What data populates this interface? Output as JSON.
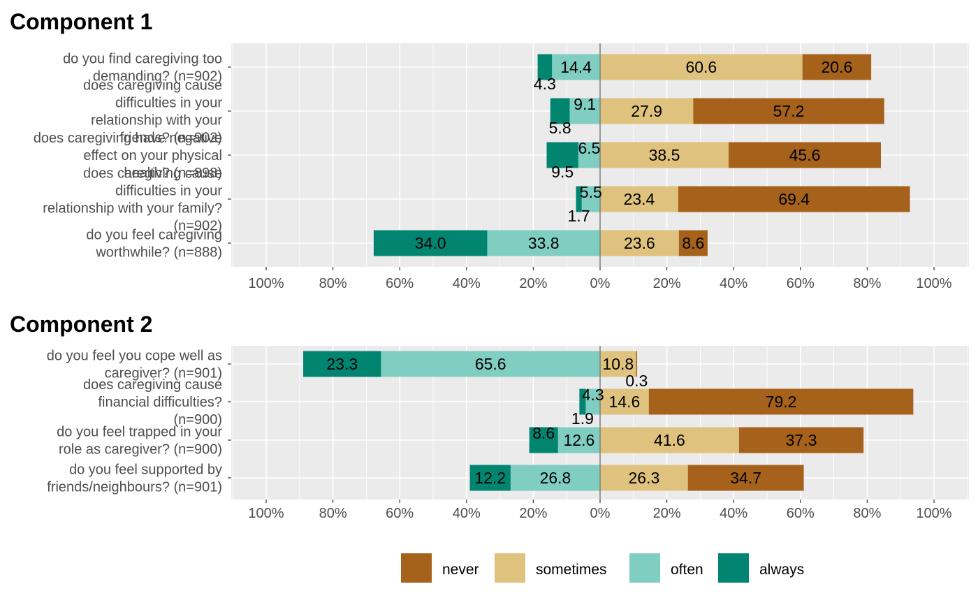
{
  "colors": {
    "never": "#A6611A",
    "sometimes": "#DFC27D",
    "often": "#80CDC1",
    "always": "#018571",
    "panel_bg": "#EBEBEB",
    "grid_major": "#FFFFFF",
    "zero_line": "#808080"
  },
  "chart_data": [
    {
      "type": "bar",
      "orientation": "horizontal-diverging-stacked",
      "title": "Component 1",
      "xlim": [
        -100,
        100
      ],
      "x_ticks": [
        "100%",
        "80%",
        "60%",
        "40%",
        "20%",
        "0%",
        "20%",
        "40%",
        "60%",
        "80%",
        "100%"
      ],
      "legend_position": "bottom",
      "categories": [
        "do you find caregiving too demanding? (n=902)",
        "does caregiving cause difficulties in your relationship with your friends? (n=902)",
        "does caregiving have negative effect on your physical health? (n=898)",
        "does caregiving cause difficulties in your relationship with your family? (n=902)",
        "do you feel caregiving worthwhile? (n=888)"
      ],
      "series": [
        {
          "name": "never",
          "side": "positive",
          "values": [
            20.6,
            57.2,
            45.6,
            69.4,
            8.6
          ]
        },
        {
          "name": "sometimes",
          "side": "positive",
          "values": [
            60.6,
            27.9,
            38.5,
            23.4,
            23.6
          ]
        },
        {
          "name": "often",
          "side": "negative",
          "values": [
            14.4,
            9.1,
            6.5,
            5.5,
            33.8
          ]
        },
        {
          "name": "always",
          "side": "negative",
          "values": [
            4.3,
            5.8,
            9.5,
            1.7,
            34.0
          ]
        }
      ]
    },
    {
      "type": "bar",
      "orientation": "horizontal-diverging-stacked",
      "title": "Component 2",
      "xlim": [
        -100,
        100
      ],
      "x_ticks": [
        "100%",
        "80%",
        "60%",
        "40%",
        "20%",
        "0%",
        "20%",
        "40%",
        "60%",
        "80%",
        "100%"
      ],
      "legend_position": "bottom",
      "categories": [
        "do you feel you cope well as caregiver? (n=901)",
        "does caregiving cause financial difficulties? (n=900)",
        "do you feel trapped in your role as caregiver? (n=900)",
        "do you feel supported by friends/neighbours? (n=901)"
      ],
      "series": [
        {
          "name": "never",
          "side": "positive",
          "values": [
            0.3,
            79.2,
            37.3,
            34.7
          ]
        },
        {
          "name": "sometimes",
          "side": "positive",
          "values": [
            10.8,
            14.6,
            41.6,
            26.3
          ]
        },
        {
          "name": "often",
          "side": "negative",
          "values": [
            65.6,
            4.3,
            12.6,
            26.8
          ]
        },
        {
          "name": "always",
          "side": "negative",
          "values": [
            23.3,
            1.9,
            8.6,
            12.2
          ]
        }
      ]
    }
  ],
  "legend": {
    "items": [
      {
        "key": "never",
        "label": "never"
      },
      {
        "key": "sometimes",
        "label": "sometimes"
      },
      {
        "key": "often",
        "label": "often"
      },
      {
        "key": "always",
        "label": "always"
      }
    ]
  }
}
